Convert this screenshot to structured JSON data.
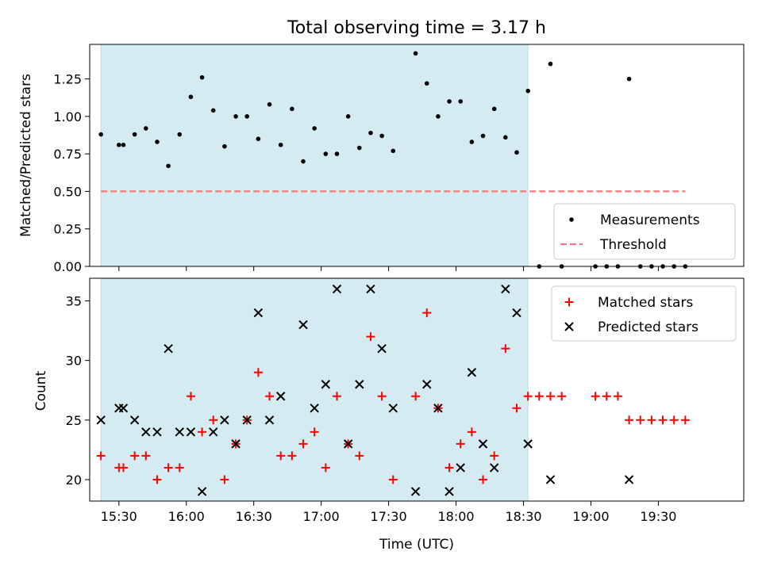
{
  "figure": {
    "title": "Total observing time = 3.17 h",
    "xlabel": "Time (UTC)"
  },
  "chart_data": [
    {
      "type": "scatter",
      "ylabel": "Matched/Predicted stars",
      "ylim": [
        0,
        1.48
      ],
      "xlim": [
        "15:17",
        "20:08"
      ],
      "shaded_interval": [
        "15:22",
        "18:32"
      ],
      "shaded_color": "#d4ebf1",
      "yticks": [
        0.0,
        0.25,
        0.5,
        0.75,
        1.0,
        1.25
      ],
      "ytick_labels": [
        "0.00",
        "0.25",
        "0.50",
        "0.75",
        "1.00",
        "1.25"
      ],
      "threshold": 0.5,
      "threshold_x": [
        "15:22",
        "19:42"
      ],
      "legend_position": "lower-right",
      "legend": [
        {
          "label": "Measurements",
          "color": "#000000",
          "marker": "dot"
        },
        {
          "label": "Threshold",
          "color": "#f47c7c",
          "marker": "dashed-line"
        }
      ],
      "series": [
        {
          "name": "Measurements",
          "color": "#000000",
          "x": [
            "15:22",
            "15:30",
            "15:32",
            "15:37",
            "15:42",
            "15:47",
            "15:52",
            "15:57",
            "16:02",
            "16:07",
            "16:12",
            "16:17",
            "16:22",
            "16:27",
            "16:32",
            "16:37",
            "16:42",
            "16:47",
            "16:52",
            "16:57",
            "17:02",
            "17:07",
            "17:12",
            "17:17",
            "17:22",
            "17:27",
            "17:32",
            "17:42",
            "17:47",
            "17:52",
            "17:57",
            "18:02",
            "18:07",
            "18:12",
            "18:17",
            "18:22",
            "18:27",
            "18:32",
            "18:37",
            "18:42",
            "18:47",
            "19:02",
            "19:07",
            "19:12",
            "19:17",
            "19:22",
            "19:27",
            "19:32",
            "19:37",
            "19:42"
          ],
          "y": [
            0.88,
            0.81,
            0.81,
            0.88,
            0.92,
            0.83,
            0.67,
            0.88,
            1.13,
            1.26,
            1.04,
            0.8,
            1.0,
            1.0,
            0.85,
            1.08,
            0.81,
            1.05,
            0.7,
            0.92,
            0.75,
            0.75,
            1.0,
            0.79,
            0.89,
            0.87,
            0.77,
            1.42,
            1.22,
            1.0,
            1.1,
            1.1,
            0.83,
            0.87,
            1.05,
            0.86,
            0.76,
            1.17,
            0.0,
            1.35,
            0.0,
            0.0,
            0.0,
            0.0,
            1.25,
            0.0,
            0.0,
            0.0,
            0.0,
            0.0
          ]
        }
      ]
    },
    {
      "type": "scatter",
      "ylabel": "Count",
      "ylim": [
        18.2,
        36.9
      ],
      "xlim": [
        "15:17",
        "20:08"
      ],
      "shaded_interval": [
        "15:22",
        "18:32"
      ],
      "yticks": [
        20,
        25,
        30,
        35
      ],
      "xticks": [
        "15:30",
        "16:00",
        "16:30",
        "17:00",
        "17:30",
        "18:00",
        "18:30",
        "19:00",
        "19:30"
      ],
      "legend_position": "upper-right",
      "legend": [
        {
          "label": "Matched stars",
          "color": "#ff0000",
          "marker": "plus"
        },
        {
          "label": "Predicted stars",
          "color": "#000000",
          "marker": "x"
        }
      ],
      "series": [
        {
          "name": "Matched stars",
          "color": "#ff0000",
          "x": [
            "15:22",
            "15:30",
            "15:32",
            "15:37",
            "15:42",
            "15:47",
            "15:52",
            "15:57",
            "16:02",
            "16:07",
            "16:12",
            "16:17",
            "16:22",
            "16:27",
            "16:32",
            "16:37",
            "16:42",
            "16:47",
            "16:52",
            "16:57",
            "17:02",
            "17:07",
            "17:12",
            "17:17",
            "17:22",
            "17:27",
            "17:32",
            "17:42",
            "17:47",
            "17:52",
            "17:57",
            "18:02",
            "18:07",
            "18:12",
            "18:17",
            "18:22",
            "18:27",
            "18:32",
            "18:37",
            "18:42",
            "18:47",
            "19:02",
            "19:07",
            "19:12",
            "19:17",
            "19:22",
            "19:27",
            "19:32",
            "19:37",
            "19:42"
          ],
          "y": [
            22,
            21,
            21,
            22,
            22,
            20,
            21,
            21,
            27,
            24,
            25,
            20,
            23,
            25,
            29,
            27,
            22,
            22,
            23,
            24,
            21,
            27,
            23,
            22,
            32,
            27,
            20,
            27,
            34,
            26,
            21,
            23,
            24,
            20,
            22,
            31,
            26,
            27,
            27,
            27,
            27,
            27,
            27,
            27,
            25,
            25,
            25,
            25,
            25,
            25
          ]
        },
        {
          "name": "Predicted stars",
          "color": "#000000",
          "x": [
            "15:22",
            "15:30",
            "15:32",
            "15:37",
            "15:42",
            "15:47",
            "15:52",
            "15:57",
            "16:02",
            "16:07",
            "16:12",
            "16:17",
            "16:22",
            "16:27",
            "16:32",
            "16:37",
            "16:42",
            "16:52",
            "16:57",
            "17:02",
            "17:07",
            "17:12",
            "17:17",
            "17:22",
            "17:27",
            "17:32",
            "17:42",
            "17:47",
            "17:52",
            "17:57",
            "18:02",
            "18:07",
            "18:12",
            "18:17",
            "18:22",
            "18:27",
            "18:32",
            "18:42",
            "19:17"
          ],
          "y": [
            25,
            26,
            26,
            25,
            24,
            24,
            31,
            24,
            24,
            19,
            24,
            25,
            23,
            25,
            34,
            25,
            27,
            33,
            26,
            28,
            36,
            23,
            28,
            36,
            31,
            26,
            19,
            28,
            26,
            19,
            21,
            29,
            23,
            21,
            36,
            34,
            23,
            20,
            20
          ]
        }
      ]
    }
  ]
}
